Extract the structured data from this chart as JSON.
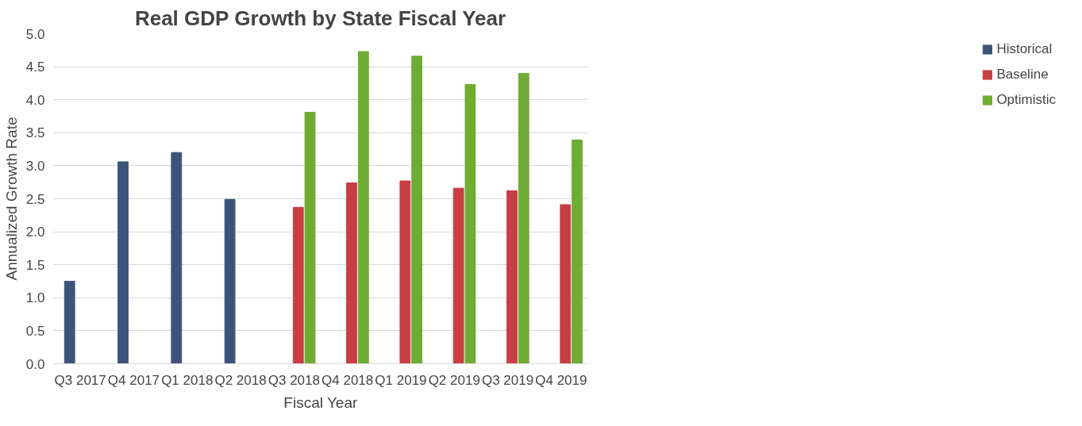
{
  "chart_data": {
    "type": "bar",
    "title": "Real GDP Growth by State Fiscal Year",
    "xlabel": "Fiscal Year",
    "ylabel": "Annualized Growth Rate",
    "categories": [
      "Q3 2017",
      "Q4 2017",
      "Q1 2018",
      "Q2 2018",
      "Q3 2018",
      "Q4 2018",
      "Q1 2019",
      "Q2 2019",
      "Q3 2019",
      "Q4 2019"
    ],
    "series": [
      {
        "name": "Historical",
        "color": "#3c5479",
        "values": [
          1.25,
          3.06,
          3.2,
          2.49,
          null,
          null,
          null,
          null,
          null,
          null
        ]
      },
      {
        "name": "Baseline",
        "color": "#c83e42",
        "values": [
          null,
          null,
          null,
          null,
          2.37,
          2.74,
          2.77,
          2.66,
          2.62,
          2.41
        ]
      },
      {
        "name": "Optimistic",
        "color": "#6fac33",
        "values": [
          null,
          null,
          null,
          null,
          3.81,
          4.73,
          4.66,
          4.23,
          4.4,
          3.39
        ]
      }
    ],
    "ylim": [
      0,
      5
    ],
    "yticks": [
      {
        "value": 0,
        "label": "0.0"
      },
      {
        "value": 0.5,
        "label": "0.5"
      },
      {
        "value": 1,
        "label": "1.0"
      },
      {
        "value": 1.5,
        "label": "1.5"
      },
      {
        "value": 2,
        "label": "2.0"
      },
      {
        "value": 2.5,
        "label": "2.5"
      },
      {
        "value": 3,
        "label": "3.0"
      },
      {
        "value": 3.5,
        "label": "3.5"
      },
      {
        "value": 4,
        "label": "4.0"
      },
      {
        "value": 4.5,
        "label": "4.5"
      },
      {
        "value": 5,
        "label": "5.0"
      }
    ],
    "grid": "y",
    "legend": "right"
  }
}
